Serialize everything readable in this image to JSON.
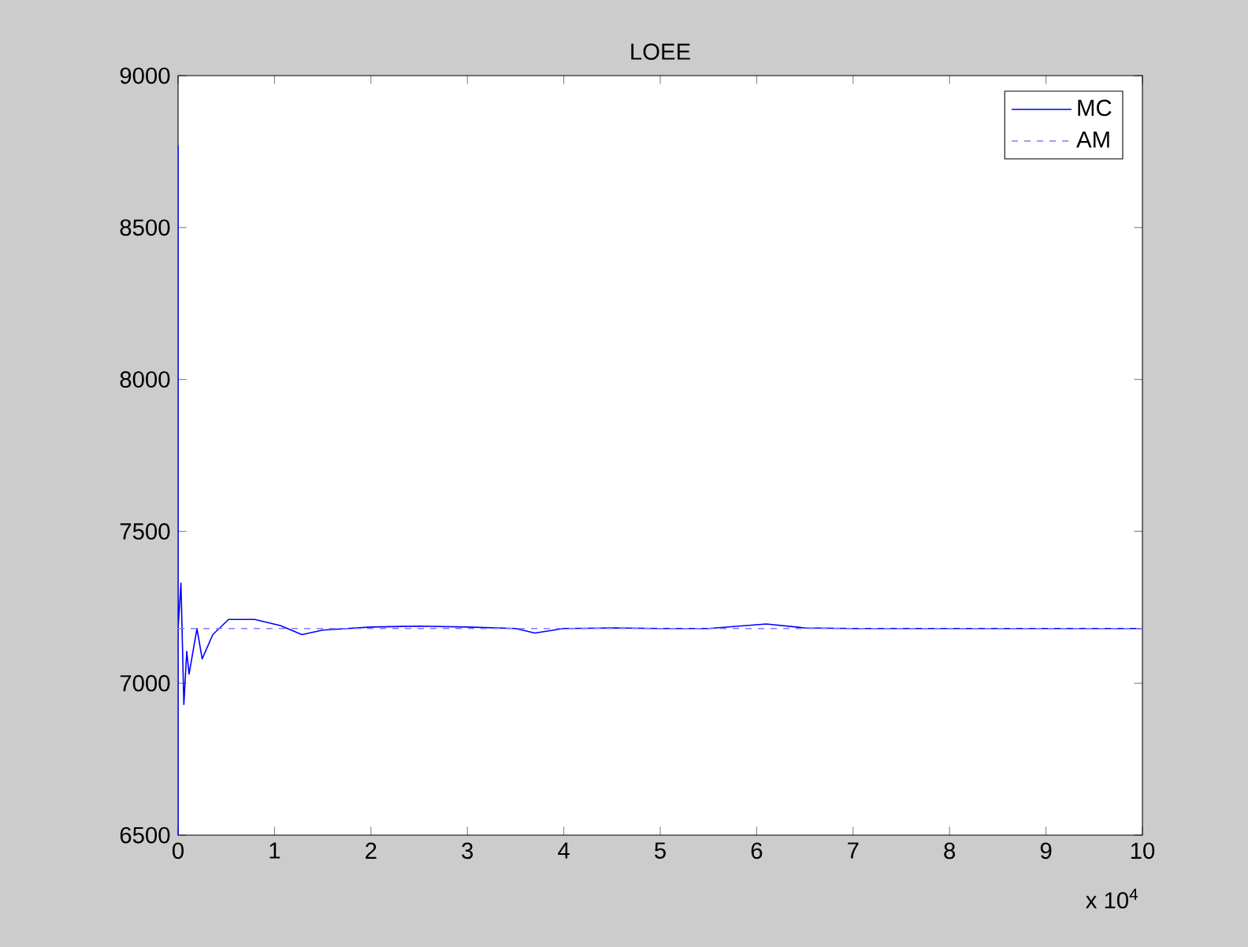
{
  "chart_data": {
    "type": "line",
    "title": "LOEE",
    "xlim": [
      0,
      10
    ],
    "xticks": [
      0,
      1,
      2,
      3,
      4,
      5,
      6,
      7,
      8,
      9,
      10
    ],
    "ylim": [
      6500,
      9000
    ],
    "yticks": [
      6500,
      7000,
      7500,
      8000,
      8500,
      9000
    ],
    "annotations": [
      "x 10$^{4}$"
    ],
    "grid": false,
    "legend": "top right",
    "marker": "none",
    "series": [
      {
        "name": "MC",
        "color": "#0000ff",
        "line_style": "solid",
        "x": [
          0,
          0.0001,
          0.0002,
          0.03,
          0.06,
          0.09,
          0.114,
          0.196,
          0.25,
          0.36,
          0.523,
          0.795,
          1.06,
          1.285,
          1.5,
          2,
          2.5,
          3,
          3.5,
          3.7,
          4,
          4.5,
          5,
          5.5,
          6.1,
          6.5,
          7,
          8,
          9,
          10
        ],
        "values": [
          8770,
          6500,
          7180,
          7330,
          6930,
          7105,
          7030,
          7180,
          7080,
          7160,
          7210,
          7210,
          7190,
          7160,
          7175,
          7185,
          7188,
          7185,
          7180,
          7165,
          7180,
          7182,
          7180,
          7180,
          7195,
          7182,
          7180,
          7180,
          7180,
          7180
        ]
      },
      {
        "name": "AM",
        "color": "#7f7fff",
        "line_style": "dashed",
        "x": [
          0,
          10
        ],
        "values": [
          7180,
          7180
        ]
      }
    ]
  }
}
